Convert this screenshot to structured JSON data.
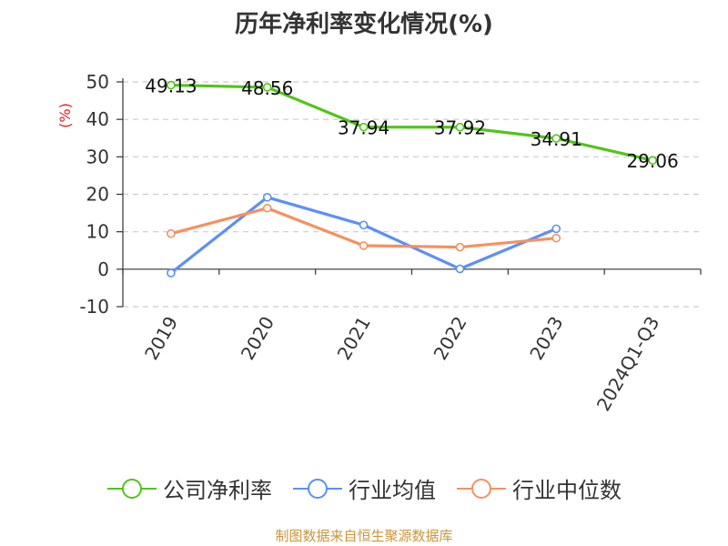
{
  "chart_data": {
    "type": "line",
    "title": "历年净利率变化情况(%)",
    "ylabel": "(%)",
    "xlabel": "",
    "categories": [
      "2019",
      "2020",
      "2021",
      "2022",
      "2023",
      "2024Q1-Q3"
    ],
    "ylim": [
      -10,
      50
    ],
    "yticks": [
      -10,
      0,
      10,
      20,
      30,
      40,
      50
    ],
    "grid": "horizontal-dashed",
    "legend_position": "bottom",
    "series": [
      {
        "name": "公司净利率",
        "color": "#52c41a",
        "values": [
          49.13,
          48.56,
          37.94,
          37.92,
          34.91,
          29.06
        ],
        "labels": [
          "49.13",
          "48.56",
          "37.94",
          "37.92",
          "34.91",
          "29.06"
        ]
      },
      {
        "name": "行业均值",
        "color": "#5b8ff9",
        "values": [
          -1.0,
          19.2,
          11.8,
          0.1,
          10.8,
          null
        ]
      },
      {
        "name": "行业中位数",
        "color": "#f6905f",
        "values": [
          9.5,
          16.3,
          6.3,
          5.9,
          8.3,
          null
        ]
      }
    ]
  },
  "footer": {
    "source": "制图数据来自恒生聚源数据库"
  }
}
